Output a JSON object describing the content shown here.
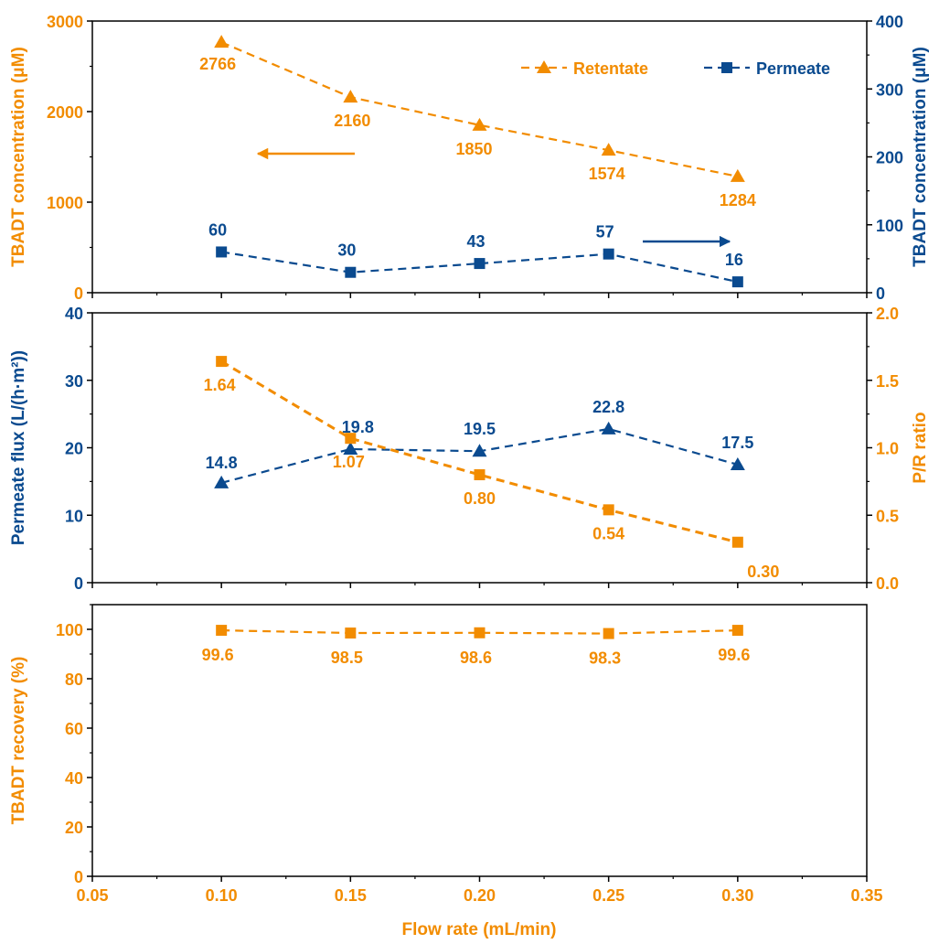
{
  "colors": {
    "orange": "#F28C00",
    "blue": "#0A4A8F",
    "axis": "#000000"
  },
  "xaxis": {
    "label": "Flow rate (mL/min)",
    "min": 0.05,
    "max": 0.35,
    "ticks": [
      "0.05",
      "0.10",
      "0.15",
      "0.20",
      "0.25",
      "0.30",
      "0.35"
    ]
  },
  "chart_data": [
    {
      "panel": "top",
      "type": "line",
      "x": [
        0.1,
        0.15,
        0.2,
        0.25,
        0.3
      ],
      "ylabel_left": "TBADT concentration (μM)",
      "ylabel_right": "TBADT concentration (μM)",
      "ylim_left": [
        0,
        3000
      ],
      "ylim_right": [
        0,
        400
      ],
      "yticks_left": [
        "0",
        "1000",
        "2000",
        "3000"
      ],
      "yticks_right": [
        "0",
        "100",
        "200",
        "300",
        "400"
      ],
      "legend_placement": "top-right",
      "series": [
        {
          "name": "Retentate",
          "axis": "left",
          "marker": "triangle",
          "color": "orange",
          "values": [
            2766,
            2160,
            1850,
            1574,
            1284
          ],
          "labels": [
            "2766",
            "2160",
            "1850",
            "1574",
            "1284"
          ]
        },
        {
          "name": "Permeate",
          "axis": "right",
          "marker": "square",
          "color": "blue",
          "values": [
            60,
            30,
            43,
            57,
            16
          ],
          "labels": [
            "60",
            "30",
            "43",
            "57",
            "16"
          ]
        }
      ]
    },
    {
      "panel": "middle",
      "type": "line",
      "x": [
        0.1,
        0.15,
        0.2,
        0.25,
        0.3
      ],
      "ylabel_left": "Permeate flux (L/(h·m²))",
      "ylabel_right": "P/R ratio",
      "ylim_left": [
        0,
        40
      ],
      "ylim_right": [
        0,
        2.0
      ],
      "yticks_left": [
        "0",
        "10",
        "20",
        "30",
        "40"
      ],
      "yticks_right": [
        "0.0",
        "0.5",
        "1.0",
        "1.5",
        "2.0"
      ],
      "series": [
        {
          "axis": "left",
          "marker": "triangle",
          "color": "blue",
          "values": [
            14.8,
            19.8,
            19.5,
            22.8,
            17.5
          ],
          "labels": [
            "14.8",
            "19.8",
            "19.5",
            "22.8",
            "17.5"
          ]
        },
        {
          "axis": "right",
          "marker": "square",
          "color": "orange",
          "values": [
            1.64,
            1.07,
            0.8,
            0.54,
            0.3
          ],
          "labels": [
            "1.64",
            "1.07",
            "0.80",
            "0.54",
            "0.30"
          ]
        }
      ]
    },
    {
      "panel": "bottom",
      "type": "line",
      "x": [
        0.1,
        0.15,
        0.2,
        0.25,
        0.3
      ],
      "ylabel_left": "TBADT recovery (%)",
      "ylim_left": [
        0,
        110
      ],
      "yticks_left": [
        "0",
        "20",
        "40",
        "60",
        "80",
        "100"
      ],
      "series": [
        {
          "axis": "left",
          "marker": "square",
          "color": "orange",
          "values": [
            99.6,
            98.5,
            98.6,
            98.3,
            99.6
          ],
          "labels": [
            "99.6",
            "98.5",
            "98.6",
            "98.3",
            "99.6"
          ]
        }
      ]
    }
  ]
}
